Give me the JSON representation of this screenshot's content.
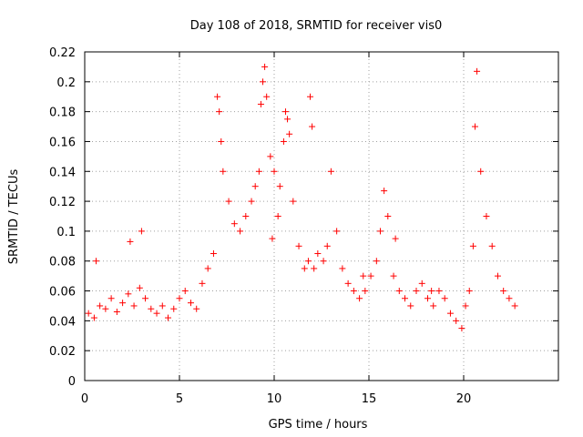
{
  "chart_data": {
    "type": "scatter",
    "title": "Day 108 of 2018, SRMTID for receiver vis0",
    "xlabel": "GPS time / hours",
    "ylabel": "SRMTID / TECUs",
    "xlim": [
      0,
      25
    ],
    "ylim": [
      0,
      0.22
    ],
    "xticks": [
      "0",
      "5",
      "10",
      "15",
      "20"
    ],
    "yticks": [
      "0",
      "0.02",
      "0.04",
      "0.06",
      "0.08",
      "0.1",
      "0.12",
      "0.14",
      "0.16",
      "0.18",
      "0.2",
      "0.22"
    ],
    "grid": true,
    "marker": "+",
    "color": "#ff0000",
    "data_extent_hours": [
      0,
      22.9
    ],
    "series": [
      {
        "x": [
          0.2,
          0.5,
          0.8,
          1.1,
          1.4,
          1.7,
          2.0,
          2.3,
          2.6,
          2.9,
          3.2,
          3.5,
          3.8,
          4.1,
          4.4,
          4.7,
          5.0,
          5.3,
          5.6,
          5.9,
          6.2,
          6.5,
          6.8,
          7.0,
          7.1,
          7.2,
          7.3,
          7.6,
          7.9,
          8.2,
          8.5,
          8.8,
          9.0,
          9.2,
          9.3,
          9.4,
          9.5,
          9.6,
          9.8,
          10.0,
          10.3,
          10.5,
          10.6,
          10.7,
          10.8,
          11.0,
          11.3,
          11.6,
          11.8,
          11.9,
          12.0,
          12.3,
          12.6,
          12.8,
          13.0,
          13.3,
          13.6,
          13.9,
          14.2,
          14.5,
          14.8,
          15.1,
          15.4,
          15.6,
          15.8,
          16.0,
          16.3,
          16.6,
          16.9,
          17.2,
          17.5,
          17.8,
          18.1,
          18.4,
          18.7,
          19.0,
          19.3,
          19.6,
          19.9,
          20.1,
          20.3,
          20.5,
          20.6,
          20.7,
          20.9,
          21.2,
          21.5,
          21.8,
          22.1,
          22.4,
          22.7,
          0.6,
          3.0,
          2.4,
          12.1,
          18.3,
          9.9,
          10.2,
          14.7,
          16.4
        ],
        "y": [
          0.045,
          0.042,
          0.05,
          0.048,
          0.055,
          0.046,
          0.052,
          0.058,
          0.05,
          0.062,
          0.055,
          0.048,
          0.045,
          0.05,
          0.042,
          0.048,
          0.055,
          0.06,
          0.052,
          0.048,
          0.065,
          0.075,
          0.085,
          0.19,
          0.18,
          0.16,
          0.14,
          0.12,
          0.105,
          0.1,
          0.11,
          0.12,
          0.13,
          0.14,
          0.185,
          0.2,
          0.21,
          0.19,
          0.15,
          0.14,
          0.13,
          0.16,
          0.18,
          0.175,
          0.165,
          0.12,
          0.09,
          0.075,
          0.08,
          0.19,
          0.17,
          0.085,
          0.08,
          0.09,
          0.14,
          0.1,
          0.075,
          0.065,
          0.06,
          0.055,
          0.06,
          0.07,
          0.08,
          0.1,
          0.127,
          0.11,
          0.07,
          0.06,
          0.055,
          0.05,
          0.06,
          0.065,
          0.055,
          0.05,
          0.06,
          0.055,
          0.045,
          0.04,
          0.035,
          0.05,
          0.06,
          0.09,
          0.17,
          0.207,
          0.14,
          0.11,
          0.09,
          0.07,
          0.06,
          0.055,
          0.05,
          0.08,
          0.1,
          0.093,
          0.075,
          0.06,
          0.095,
          0.11,
          0.07,
          0.095
        ]
      }
    ]
  }
}
